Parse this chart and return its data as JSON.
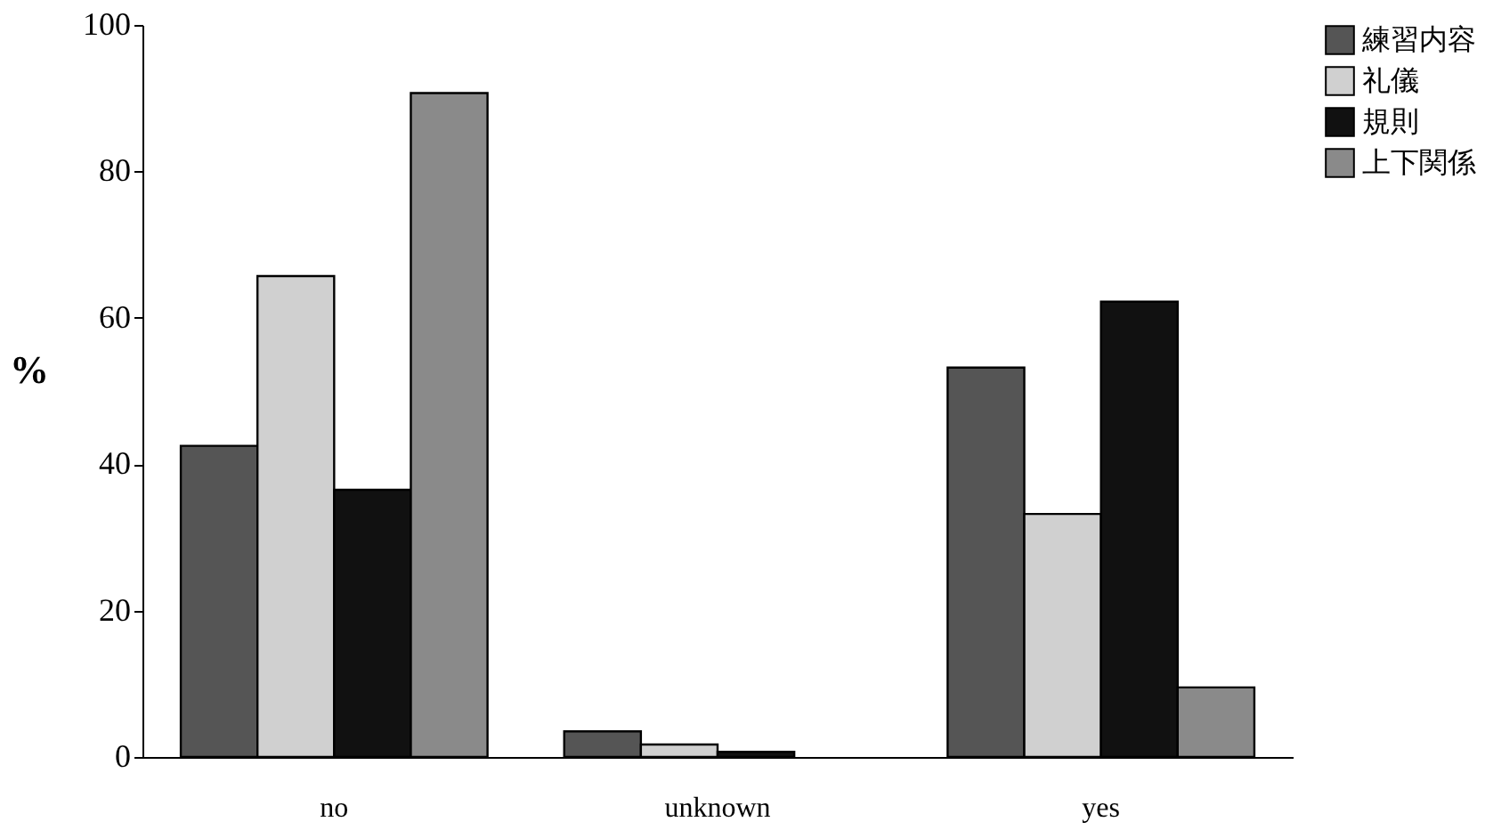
{
  "chart_data": {
    "type": "bar",
    "ylabel": "%",
    "categories": [
      "no",
      "unknown",
      "yes"
    ],
    "series": [
      {
        "name": "練習内容",
        "color": "#555555",
        "values": [
          42.5,
          3.5,
          53.2
        ]
      },
      {
        "name": "礼儀",
        "color": "#d0d0d0",
        "values": [
          65.7,
          1.7,
          33.2
        ]
      },
      {
        "name": "規則",
        "color": "#111111",
        "values": [
          36.5,
          0.7,
          62.2
        ]
      },
      {
        "name": "上下関係",
        "color": "#8a8a8a",
        "values": [
          90.7,
          null,
          9.5
        ]
      }
    ],
    "ylim": [
      0,
      100
    ],
    "yticks": [
      0,
      20,
      40,
      60,
      80,
      100
    ],
    "grid": false,
    "legend": "top right"
  }
}
